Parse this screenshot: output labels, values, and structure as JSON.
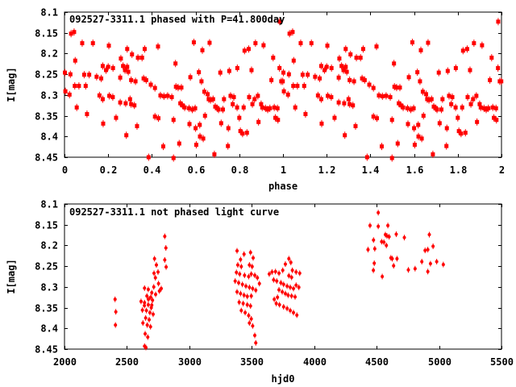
{
  "figure": {
    "background": "#ffffff",
    "frame_color": "#000000",
    "marker_color": "#ff0000"
  },
  "chart_data": [
    {
      "type": "scatter",
      "title": "092527-3311.1 phased with P=41.800day",
      "xlabel": "phase",
      "ylabel": "I[mag]",
      "xlim": [
        0,
        2
      ],
      "ylim": [
        8.45,
        8.1
      ],
      "y_inverted": true,
      "grid": false,
      "legend": "none",
      "xtick_labels": [
        "0",
        "0.2",
        "0.4",
        "0.6",
        "0.8",
        "1",
        "1.2",
        "1.4",
        "1.6",
        "1.8",
        "2"
      ],
      "ytick_labels": [
        "8.1",
        "8.15",
        "8.2",
        "8.25",
        "8.3",
        "8.35",
        "8.4",
        "8.45"
      ],
      "marker": "red-filled-square-with-errorbar",
      "plot_phase_twice": true,
      "points": [
        [
          0.002,
          8.246
        ],
        [
          0.004,
          8.291
        ],
        [
          0.023,
          8.299
        ],
        [
          0.027,
          8.25
        ],
        [
          0.03,
          8.152
        ],
        [
          0.044,
          8.148
        ],
        [
          0.047,
          8.278
        ],
        [
          0.049,
          8.217
        ],
        [
          0.056,
          8.33
        ],
        [
          0.066,
          8.278
        ],
        [
          0.081,
          8.175
        ],
        [
          0.09,
          8.251
        ],
        [
          0.097,
          8.278
        ],
        [
          0.103,
          8.346
        ],
        [
          0.113,
          8.251
        ],
        [
          0.13,
          8.175
        ],
        [
          0.147,
          8.256
        ],
        [
          0.16,
          8.301
        ],
        [
          0.168,
          8.26
        ],
        [
          0.175,
          8.23
        ],
        [
          0.175,
          8.31
        ],
        [
          0.177,
          8.369
        ],
        [
          0.19,
          8.24
        ],
        [
          0.2,
          8.232
        ],
        [
          0.203,
          8.181
        ],
        [
          0.205,
          8.302
        ],
        [
          0.221,
          8.305
        ],
        [
          0.222,
          8.235
        ],
        [
          0.236,
          8.355
        ],
        [
          0.255,
          8.258
        ],
        [
          0.255,
          8.318
        ],
        [
          0.258,
          8.212
        ],
        [
          0.268,
          8.23
        ],
        [
          0.277,
          8.24
        ],
        [
          0.28,
          8.32
        ],
        [
          0.283,
          8.397
        ],
        [
          0.287,
          8.189
        ],
        [
          0.287,
          8.232
        ],
        [
          0.292,
          8.244
        ],
        [
          0.3,
          8.31
        ],
        [
          0.305,
          8.264
        ],
        [
          0.305,
          8.322
        ],
        [
          0.309,
          8.202
        ],
        [
          0.32,
          8.325
        ],
        [
          0.325,
          8.267
        ],
        [
          0.332,
          8.375
        ],
        [
          0.336,
          8.21
        ],
        [
          0.355,
          8.21
        ],
        [
          0.362,
          8.26
        ],
        [
          0.367,
          8.189
        ],
        [
          0.374,
          8.264
        ],
        [
          0.385,
          8.45
        ],
        [
          0.395,
          8.275
        ],
        [
          0.414,
          8.283
        ],
        [
          0.414,
          8.352
        ],
        [
          0.428,
          8.183
        ],
        [
          0.43,
          8.356
        ],
        [
          0.439,
          8.301
        ],
        [
          0.452,
          8.424
        ],
        [
          0.455,
          8.303
        ],
        [
          0.472,
          8.302
        ],
        [
          0.491,
          8.305
        ],
        [
          0.499,
          8.36
        ],
        [
          0.499,
          8.452
        ],
        [
          0.508,
          8.224
        ],
        [
          0.51,
          8.28
        ],
        [
          0.52,
          8.282
        ],
        [
          0.525,
          8.417
        ],
        [
          0.53,
          8.32
        ],
        [
          0.535,
          8.282
        ],
        [
          0.54,
          8.325
        ],
        [
          0.55,
          8.33
        ],
        [
          0.57,
          8.332
        ],
        [
          0.572,
          8.37
        ],
        [
          0.576,
          8.257
        ],
        [
          0.585,
          8.335
        ],
        [
          0.592,
          8.173
        ],
        [
          0.598,
          8.332
        ],
        [
          0.6,
          8.38
        ],
        [
          0.603,
          8.42
        ],
        [
          0.615,
          8.245
        ],
        [
          0.619,
          8.372
        ],
        [
          0.62,
          8.4
        ],
        [
          0.627,
          8.267
        ],
        [
          0.631,
          8.192
        ],
        [
          0.635,
          8.405
        ],
        [
          0.64,
          8.292
        ],
        [
          0.643,
          8.35
        ],
        [
          0.655,
          8.298
        ],
        [
          0.66,
          8.31
        ],
        [
          0.664,
          8.174
        ],
        [
          0.668,
          8.312
        ],
        [
          0.68,
          8.31
        ],
        [
          0.686,
          8.443
        ],
        [
          0.69,
          8.328
        ],
        [
          0.7,
          8.332
        ],
        [
          0.705,
          8.335
        ],
        [
          0.713,
          8.246
        ],
        [
          0.717,
          8.368
        ],
        [
          0.725,
          8.335
        ],
        [
          0.73,
          8.31
        ],
        [
          0.748,
          8.423
        ],
        [
          0.75,
          8.38
        ],
        [
          0.754,
          8.242
        ],
        [
          0.76,
          8.302
        ],
        [
          0.77,
          8.322
        ],
        [
          0.775,
          8.305
        ],
        [
          0.79,
          8.33
        ],
        [
          0.791,
          8.235
        ],
        [
          0.8,
          8.355
        ],
        [
          0.805,
          8.387
        ],
        [
          0.815,
          8.393
        ],
        [
          0.82,
          8.33
        ],
        [
          0.824,
          8.193
        ],
        [
          0.835,
          8.391
        ],
        [
          0.843,
          8.189
        ],
        [
          0.845,
          8.305
        ],
        [
          0.856,
          8.24
        ],
        [
          0.86,
          8.322
        ],
        [
          0.87,
          8.31
        ],
        [
          0.874,
          8.175
        ],
        [
          0.885,
          8.302
        ],
        [
          0.888,
          8.365
        ],
        [
          0.9,
          8.322
        ],
        [
          0.905,
          8.33
        ],
        [
          0.911,
          8.18
        ],
        [
          0.92,
          8.332
        ],
        [
          0.93,
          8.335
        ],
        [
          0.94,
          8.332
        ],
        [
          0.947,
          8.264
        ],
        [
          0.955,
          8.21
        ],
        [
          0.96,
          8.33
        ],
        [
          0.965,
          8.355
        ],
        [
          0.975,
          8.332
        ],
        [
          0.977,
          8.36
        ],
        [
          0.984,
          8.235
        ],
        [
          0.985,
          8.123
        ],
        [
          0.992,
          8.267
        ],
        [
          0.999,
          8.267
        ]
      ]
    },
    {
      "type": "scatter",
      "title": "092527-3311.1 not phased light curve",
      "xlabel": "hjd0",
      "ylabel": "I[mag]",
      "xlim": [
        2000,
        5500
      ],
      "ylim": [
        8.45,
        8.1
      ],
      "y_inverted": true,
      "grid": false,
      "legend": "none",
      "xtick_labels": [
        "2000",
        "2500",
        "3000",
        "3500",
        "4000",
        "4500",
        "5000",
        "5500"
      ],
      "ytick_labels": [
        "8.1",
        "8.15",
        "8.2",
        "8.25",
        "8.3",
        "8.35",
        "8.4",
        "8.45"
      ],
      "marker": "red-filled-circle-with-errorbar",
      "plot_phase_twice": false,
      "points": [
        [
          2405,
          8.33
        ],
        [
          2411,
          8.36
        ],
        [
          2408,
          8.392
        ],
        [
          2613,
          8.335
        ],
        [
          2624,
          8.356
        ],
        [
          2628,
          8.387
        ],
        [
          2640,
          8.345
        ],
        [
          2641,
          8.303
        ],
        [
          2641,
          8.338
        ],
        [
          2641,
          8.443
        ],
        [
          2646,
          8.413
        ],
        [
          2650,
          8.375
        ],
        [
          2652,
          8.446
        ],
        [
          2656,
          8.357
        ],
        [
          2660,
          8.322
        ],
        [
          2663,
          8.392
        ],
        [
          2667,
          8.421
        ],
        [
          2671,
          8.306
        ],
        [
          2671,
          8.343
        ],
        [
          2672,
          8.33
        ],
        [
          2678,
          8.379
        ],
        [
          2684,
          8.362
        ],
        [
          2689,
          8.396
        ],
        [
          2690,
          8.325
        ],
        [
          2695,
          8.35
        ],
        [
          2699,
          8.314
        ],
        [
          2699,
          8.344
        ],
        [
          2705,
          8.332
        ],
        [
          2710,
          8.366
        ],
        [
          2715,
          8.3
        ],
        [
          2717,
          8.267
        ],
        [
          2721,
          8.232
        ],
        [
          2728,
          8.278
        ],
        [
          2730,
          8.318
        ],
        [
          2736,
          8.247
        ],
        [
          2749,
          8.264
        ],
        [
          2753,
          8.292
        ],
        [
          2760,
          8.31
        ],
        [
          2775,
          8.304
        ],
        [
          2803,
          8.178
        ],
        [
          2803,
          8.235
        ],
        [
          2812,
          8.206
        ],
        [
          2814,
          8.252
        ],
        [
          3367,
          8.286
        ],
        [
          3377,
          8.265
        ],
        [
          3382,
          8.213
        ],
        [
          3382,
          8.312
        ],
        [
          3388,
          8.247
        ],
        [
          3395,
          8.29
        ],
        [
          3399,
          8.337
        ],
        [
          3403,
          8.269
        ],
        [
          3410,
          8.234
        ],
        [
          3410,
          8.316
        ],
        [
          3416,
          8.251
        ],
        [
          3416,
          8.357
        ],
        [
          3425,
          8.294
        ],
        [
          3431,
          8.34
        ],
        [
          3438,
          8.221
        ],
        [
          3438,
          8.32
        ],
        [
          3442,
          8.272
        ],
        [
          3447,
          8.362
        ],
        [
          3453,
          8.298
        ],
        [
          3464,
          8.323
        ],
        [
          3464,
          8.343
        ],
        [
          3475,
          8.275
        ],
        [
          3475,
          8.369
        ],
        [
          3481,
          8.247
        ],
        [
          3481,
          8.301
        ],
        [
          3481,
          8.387
        ],
        [
          3490,
          8.217
        ],
        [
          3490,
          8.346
        ],
        [
          3496,
          8.269
        ],
        [
          3496,
          8.322
        ],
        [
          3496,
          8.377
        ],
        [
          3503,
          8.251
        ],
        [
          3507,
          8.304
        ],
        [
          3507,
          8.394
        ],
        [
          3511,
          8.23
        ],
        [
          3524,
          8.272
        ],
        [
          3524,
          8.417
        ],
        [
          3532,
          8.308
        ],
        [
          3532,
          8.435
        ],
        [
          3545,
          8.278
        ],
        [
          3561,
          8.292
        ],
        [
          3640,
          8.269
        ],
        [
          3662,
          8.264
        ],
        [
          3675,
          8.283
        ],
        [
          3680,
          8.33
        ],
        [
          3690,
          8.263
        ],
        [
          3696,
          8.34
        ],
        [
          3700,
          8.286
        ],
        [
          3706,
          8.325
        ],
        [
          3718,
          8.267
        ],
        [
          3718,
          8.307
        ],
        [
          3722,
          8.343
        ],
        [
          3733,
          8.29
        ],
        [
          3744,
          8.312
        ],
        [
          3748,
          8.26
        ],
        [
          3755,
          8.294
        ],
        [
          3755,
          8.348
        ],
        [
          3769,
          8.245
        ],
        [
          3769,
          8.316
        ],
        [
          3783,
          8.298
        ],
        [
          3783,
          8.352
        ],
        [
          3791,
          8.32
        ],
        [
          3797,
          8.232
        ],
        [
          3797,
          8.273
        ],
        [
          3808,
          8.301
        ],
        [
          3808,
          8.357
        ],
        [
          3813,
          8.241
        ],
        [
          3819,
          8.277
        ],
        [
          3819,
          8.322
        ],
        [
          3825,
          8.26
        ],
        [
          3834,
          8.304
        ],
        [
          3834,
          8.362
        ],
        [
          3847,
          8.324
        ],
        [
          3855,
          8.264
        ],
        [
          3855,
          8.296
        ],
        [
          3861,
          8.368
        ],
        [
          3877,
          8.301
        ],
        [
          3884,
          8.267
        ],
        [
          4431,
          8.21
        ],
        [
          4447,
          8.152
        ],
        [
          4474,
          8.26
        ],
        [
          4475,
          8.187
        ],
        [
          4481,
          8.243
        ],
        [
          4485,
          8.208
        ],
        [
          4513,
          8.121
        ],
        [
          4513,
          8.154
        ],
        [
          4540,
          8.191
        ],
        [
          4545,
          8.275
        ],
        [
          4558,
          8.192
        ],
        [
          4570,
          8.174
        ],
        [
          4578,
          8.2
        ],
        [
          4583,
          8.177
        ],
        [
          4590,
          8.152
        ],
        [
          4600,
          8.179
        ],
        [
          4614,
          8.23
        ],
        [
          4625,
          8.232
        ],
        [
          4636,
          8.249
        ],
        [
          4657,
          8.173
        ],
        [
          4663,
          8.232
        ],
        [
          4722,
          8.181
        ],
        [
          4754,
          8.259
        ],
        [
          4808,
          8.256
        ],
        [
          4862,
          8.239
        ],
        [
          4888,
          8.212
        ],
        [
          4910,
          8.21
        ],
        [
          4910,
          8.263
        ],
        [
          4922,
          8.174
        ],
        [
          4931,
          8.244
        ],
        [
          4952,
          8.202
        ],
        [
          4981,
          8.239
        ],
        [
          5034,
          8.246
        ]
      ]
    }
  ]
}
